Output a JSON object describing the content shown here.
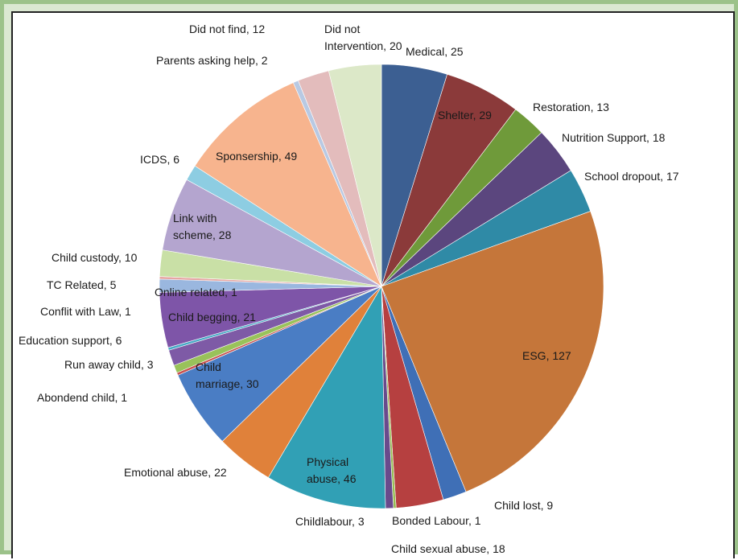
{
  "chart_data": {
    "type": "pie",
    "title": "",
    "slices": [
      {
        "label": "Medical",
        "value": 25,
        "color": "#3c5f92"
      },
      {
        "label": "Shelter",
        "value": 29,
        "color": "#8b3a3a"
      },
      {
        "label": "Restoration",
        "value": 13,
        "color": "#6f9a3a"
      },
      {
        "label": "Nutrition Support",
        "value": 18,
        "color": "#5b467e"
      },
      {
        "label": "School dropout",
        "value": 17,
        "color": "#2f8aa6"
      },
      {
        "label": "ESG",
        "value": 127,
        "color": "#c5763a"
      },
      {
        "label": "Child lost",
        "value": 9,
        "color": "#3f6fb6"
      },
      {
        "label": "Child sexual abuse",
        "value": 18,
        "color": "#b64040"
      },
      {
        "label": "Bonded Labour",
        "value": 1,
        "color": "#96bd51"
      },
      {
        "label": "Childlabour",
        "value": 3,
        "color": "#6a4a8c"
      },
      {
        "label": "Physical abuse",
        "value": 46,
        "color": "#31a0b5"
      },
      {
        "label": "Emotional abuse",
        "value": 22,
        "color": "#e0813a"
      },
      {
        "label": "Child marriage",
        "value": 30,
        "color": "#4a7dc4"
      },
      {
        "label": "Abondend child",
        "value": 1,
        "color": "#c85050"
      },
      {
        "label": "Run away  child",
        "value": 3,
        "color": "#99c25a"
      },
      {
        "label": "Education support",
        "value": 6,
        "color": "#7e5aa6"
      },
      {
        "label": "Conflit with Law",
        "value": 1,
        "color": "#46a9c6"
      },
      {
        "label": "Child begging",
        "value": 21,
        "color": "#7e55a8"
      },
      {
        "label": "TC Related",
        "value": 5,
        "color": "#9ab7df"
      },
      {
        "label": "Online related",
        "value": 1,
        "color": "#e6a6a3"
      },
      {
        "label": "Child custody",
        "value": 10,
        "color": "#c9e0a6"
      },
      {
        "label": "Link with scheme",
        "value": 28,
        "color": "#b4a5cf"
      },
      {
        "label": "ICDS",
        "value": 6,
        "color": "#8dcde2"
      },
      {
        "label": "Sponsership",
        "value": 49,
        "color": "#f7b48e"
      },
      {
        "label": "Parents asking help",
        "value": 2,
        "color": "#b8c9e3"
      },
      {
        "label": "Did not find",
        "value": 12,
        "color": "#e3bcbc"
      },
      {
        "label": "Did not Intervention",
        "value": 20,
        "color": "#dce8c8"
      }
    ],
    "labels": [
      {
        "lines": [
          "Medical, 25"
        ]
      },
      {
        "lines": [
          "Shelter, 29"
        ]
      },
      {
        "lines": [
          "Restoration, 13"
        ]
      },
      {
        "lines": [
          "Nutrition Support, 18"
        ]
      },
      {
        "lines": [
          "School dropout, 17"
        ]
      },
      {
        "lines": [
          "ESG, 127"
        ]
      },
      {
        "lines": [
          "Child lost, 9"
        ]
      },
      {
        "lines": [
          "Child sexual abuse, 18"
        ]
      },
      {
        "lines": [
          "Bonded Labour, 1"
        ]
      },
      {
        "lines": [
          "Childlabour, 3"
        ]
      },
      {
        "lines": [
          "Physical",
          "abuse, 46"
        ]
      },
      {
        "lines": [
          "Emotional abuse, 22"
        ]
      },
      {
        "lines": [
          "Child",
          "marriage, 30"
        ]
      },
      {
        "lines": [
          "Abondend child, 1"
        ]
      },
      {
        "lines": [
          "Run away  child, 3"
        ]
      },
      {
        "lines": [
          "Education support, 6"
        ]
      },
      {
        "lines": [
          "Conflit with Law, 1"
        ]
      },
      {
        "lines": [
          "Child begging, 21"
        ]
      },
      {
        "lines": [
          "TC Related, 5"
        ]
      },
      {
        "lines": [
          "Online related, 1"
        ]
      },
      {
        "lines": [
          "Child custody, 10"
        ]
      },
      {
        "lines": [
          "Link with",
          "scheme, 28"
        ]
      },
      {
        "lines": [
          "ICDS, 6"
        ]
      },
      {
        "lines": [
          "Sponsership, 49"
        ]
      },
      {
        "lines": [
          "Parents asking help, 2"
        ]
      },
      {
        "lines": [
          "Did not find, 12"
        ]
      },
      {
        "lines": [
          "Did not",
          "Intervention, 20"
        ]
      }
    ]
  }
}
